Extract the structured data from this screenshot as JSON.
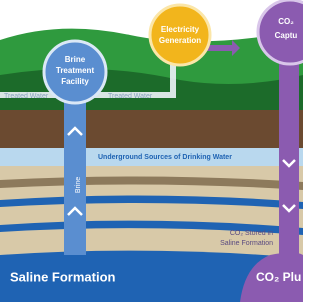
{
  "brine_facility": [
    "Brine",
    "Treatment",
    "Facility"
  ],
  "electricity": [
    "Electricity",
    "Generation"
  ],
  "capture": [
    "CO₂",
    "Captu"
  ],
  "treated_water": [
    "Treated Water",
    "Treated Water"
  ],
  "aquifer": "Underground Sources of Drinking Water",
  "brine": "Brine",
  "co2_stored": [
    "CO₂ Stored in",
    "Saline Formation"
  ],
  "saline_formation": "Saline Formation",
  "plume": "CO₂ Plu"
}
